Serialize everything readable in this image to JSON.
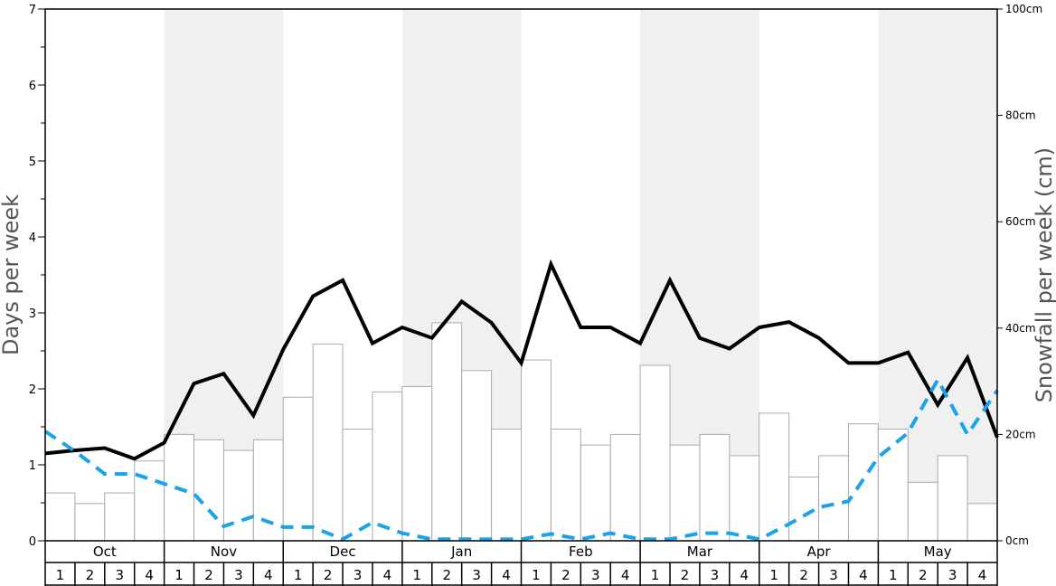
{
  "chart_data": {
    "type": "bar+line",
    "left_axis": {
      "label": "Days per week",
      "ylim": [
        0,
        7
      ],
      "ticks": [
        "0",
        "1",
        "2",
        "3",
        "4",
        "5",
        "6",
        "7"
      ]
    },
    "right_axis": {
      "label": "Snowfall per week (cm)",
      "ylim": [
        0,
        100
      ],
      "ticks": [
        "0cm",
        "20cm",
        "40cm",
        "60cm",
        "80cm",
        "100cm"
      ]
    },
    "months": [
      "Oct",
      "Nov",
      "Dec",
      "Jan",
      "Feb",
      "Mar",
      "Apr",
      "May"
    ],
    "weeks": [
      "1",
      "2",
      "3",
      "4"
    ],
    "shaded_months": [
      false,
      true,
      false,
      true,
      false,
      true,
      false,
      true
    ],
    "grid": false,
    "series": [
      {
        "kind": "bar",
        "axis": "right",
        "color": "#ffffff",
        "stroke": "#aaaaaa",
        "values": [
          9,
          7,
          9,
          15,
          20,
          19,
          17,
          19,
          27,
          37,
          21,
          28,
          29,
          41,
          32,
          21,
          34,
          21,
          18,
          20,
          33,
          18,
          20,
          16,
          24,
          12,
          16,
          22,
          21,
          11,
          16,
          7
        ]
      },
      {
        "kind": "line",
        "axis": "left",
        "color": "#000000",
        "style": "solid",
        "values": [
          1.15,
          1.19,
          1.22,
          1.08,
          1.29,
          2.07,
          2.2,
          1.65,
          2.52,
          3.22,
          3.43,
          2.6,
          2.81,
          2.67,
          3.15,
          2.87,
          2.34,
          3.64,
          2.81,
          2.81,
          2.6,
          3.43,
          2.67,
          2.53,
          2.81,
          2.88,
          2.67,
          2.34,
          2.34,
          2.48,
          1.79,
          2.41,
          1.36
        ]
      },
      {
        "kind": "line",
        "axis": "left",
        "color": "#1aa3e8",
        "style": "dashed",
        "values": [
          1.44,
          1.18,
          0.88,
          0.88,
          0.75,
          0.62,
          0.19,
          0.32,
          0.18,
          0.18,
          0.02,
          0.24,
          0.1,
          0.02,
          0.02,
          0.02,
          0.02,
          0.09,
          0.02,
          0.1,
          0.02,
          0.02,
          0.1,
          0.1,
          0.02,
          0.22,
          0.44,
          0.52,
          1.1,
          1.42,
          2.12,
          1.4,
          1.98
        ]
      }
    ]
  }
}
